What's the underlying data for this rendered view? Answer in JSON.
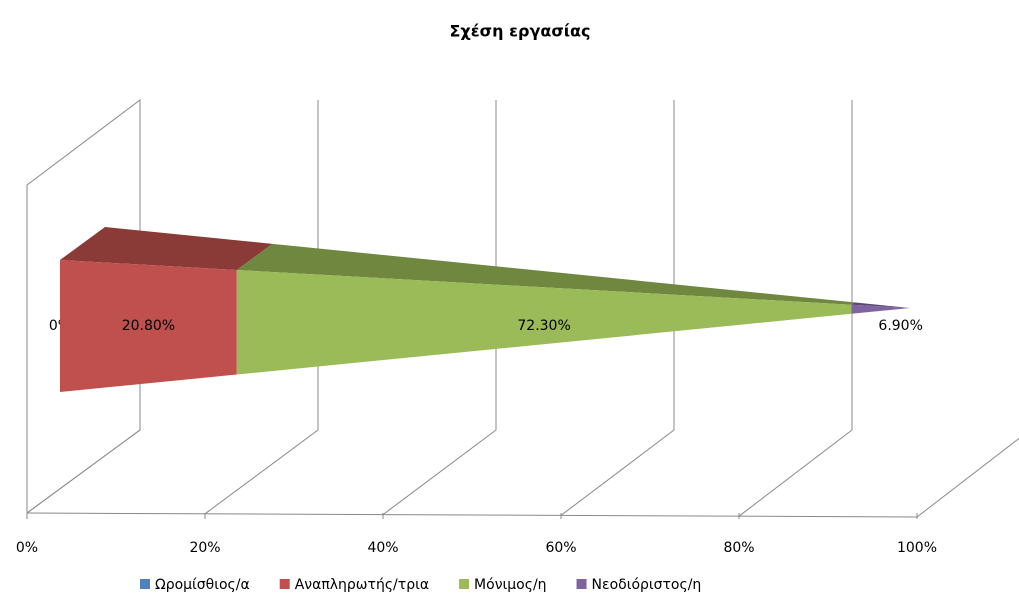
{
  "chart_data": {
    "type": "bar",
    "orientation": "horizontal",
    "stacked": true,
    "title": "Σχέση εργασίας",
    "categories": [
      null
    ],
    "series": [
      {
        "name": "Ωρομίσθιος/α",
        "color": "#4f81bd",
        "values": [
          0
        ],
        "value_labels": [
          "0%"
        ]
      },
      {
        "name": "Αναπληρωτής/τρια",
        "color": "#c0504d",
        "values": [
          20.8
        ],
        "value_labels": [
          "20.80%"
        ]
      },
      {
        "name": "Μόνιμος/η",
        "color": "#9bbb59",
        "values": [
          72.3
        ],
        "value_labels": [
          "72.30%"
        ]
      },
      {
        "name": "Νεοδιόριστος/η",
        "color": "#8064a2",
        "values": [
          6.9
        ],
        "value_labels": [
          "6.90%"
        ]
      }
    ],
    "xlim": [
      0,
      100
    ],
    "xticks": [
      {
        "value": 0,
        "label": "0%"
      },
      {
        "value": 20,
        "label": "20%"
      },
      {
        "value": 40,
        "label": "40%"
      },
      {
        "value": 60,
        "label": "60%"
      },
      {
        "value": 80,
        "label": "80%"
      },
      {
        "value": 100,
        "label": "100%"
      }
    ],
    "grid": true,
    "legend": "bottom"
  }
}
